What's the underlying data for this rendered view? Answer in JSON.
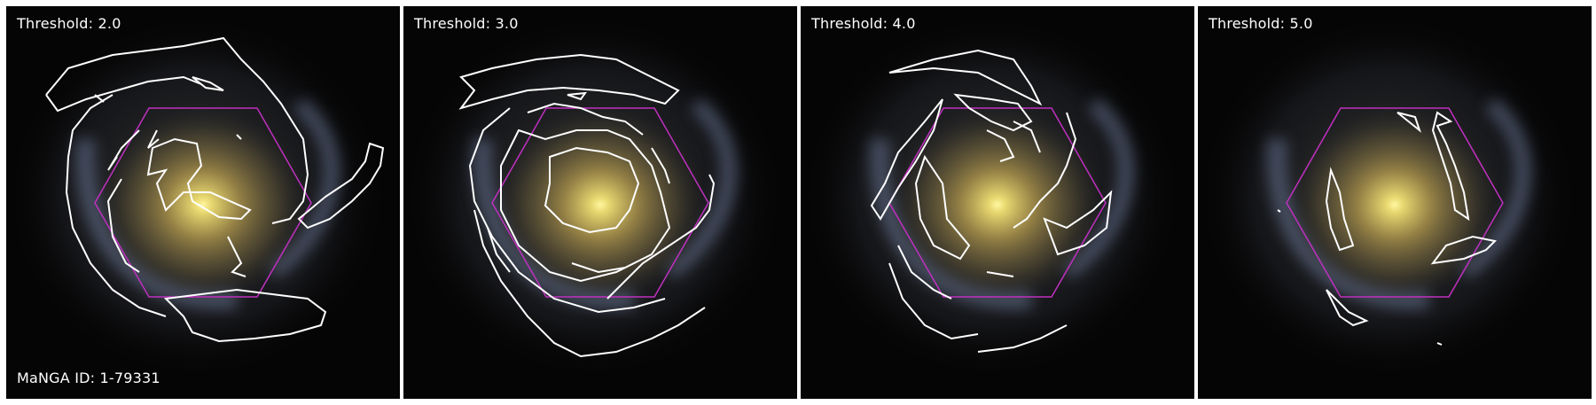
{
  "panels": [
    {
      "threshold_label": "Threshold: 2.0"
    },
    {
      "threshold_label": "Threshold: 3.0"
    },
    {
      "threshold_label": "Threshold: 4.0"
    },
    {
      "threshold_label": "Threshold: 5.0"
    }
  ],
  "manga_id": "MaNGA ID: 1-79331",
  "colors": {
    "contour": "#ffffff",
    "hexagon": "#c030c0",
    "background": "#050505",
    "galaxy_core": "#f0e070",
    "bulge": "#b49a4a",
    "arms": "#6a7898"
  }
}
